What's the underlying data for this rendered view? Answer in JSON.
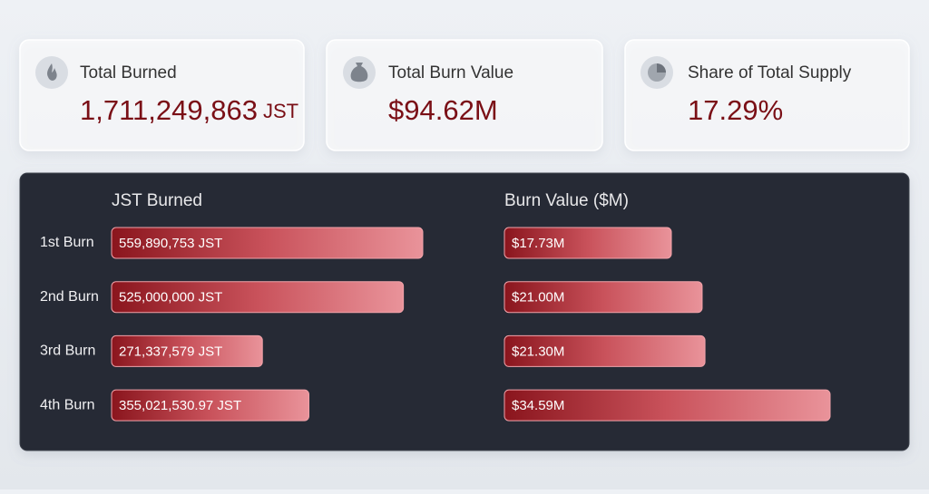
{
  "cards": [
    {
      "label": "Total Burned",
      "value": "1,711,249,863",
      "unit": "JST"
    },
    {
      "label": "Total Burn Value",
      "value": "$94.62M"
    },
    {
      "label": "Share of Total Supply",
      "value": "17.29%"
    }
  ],
  "chart_data": [
    {
      "type": "hbar",
      "title": "JST Burned",
      "categories": [
        "1st Burn",
        "2nd Burn",
        "3rd Burn",
        "4th Burn"
      ],
      "values": [
        559890753,
        525000000,
        271337579,
        355021530.97
      ],
      "value_labels": [
        "559,890,753 JST",
        "525,000,000 JST",
        "271,337,579 JST",
        "355,021,530.97 JST"
      ]
    },
    {
      "type": "hbar",
      "title": "Burn Value ($M)",
      "values": [
        17.73,
        21.0,
        21.3,
        34.59
      ],
      "value_labels": [
        "$17.73M",
        "$21.00M",
        "$21.30M",
        "$34.59M"
      ]
    }
  ]
}
